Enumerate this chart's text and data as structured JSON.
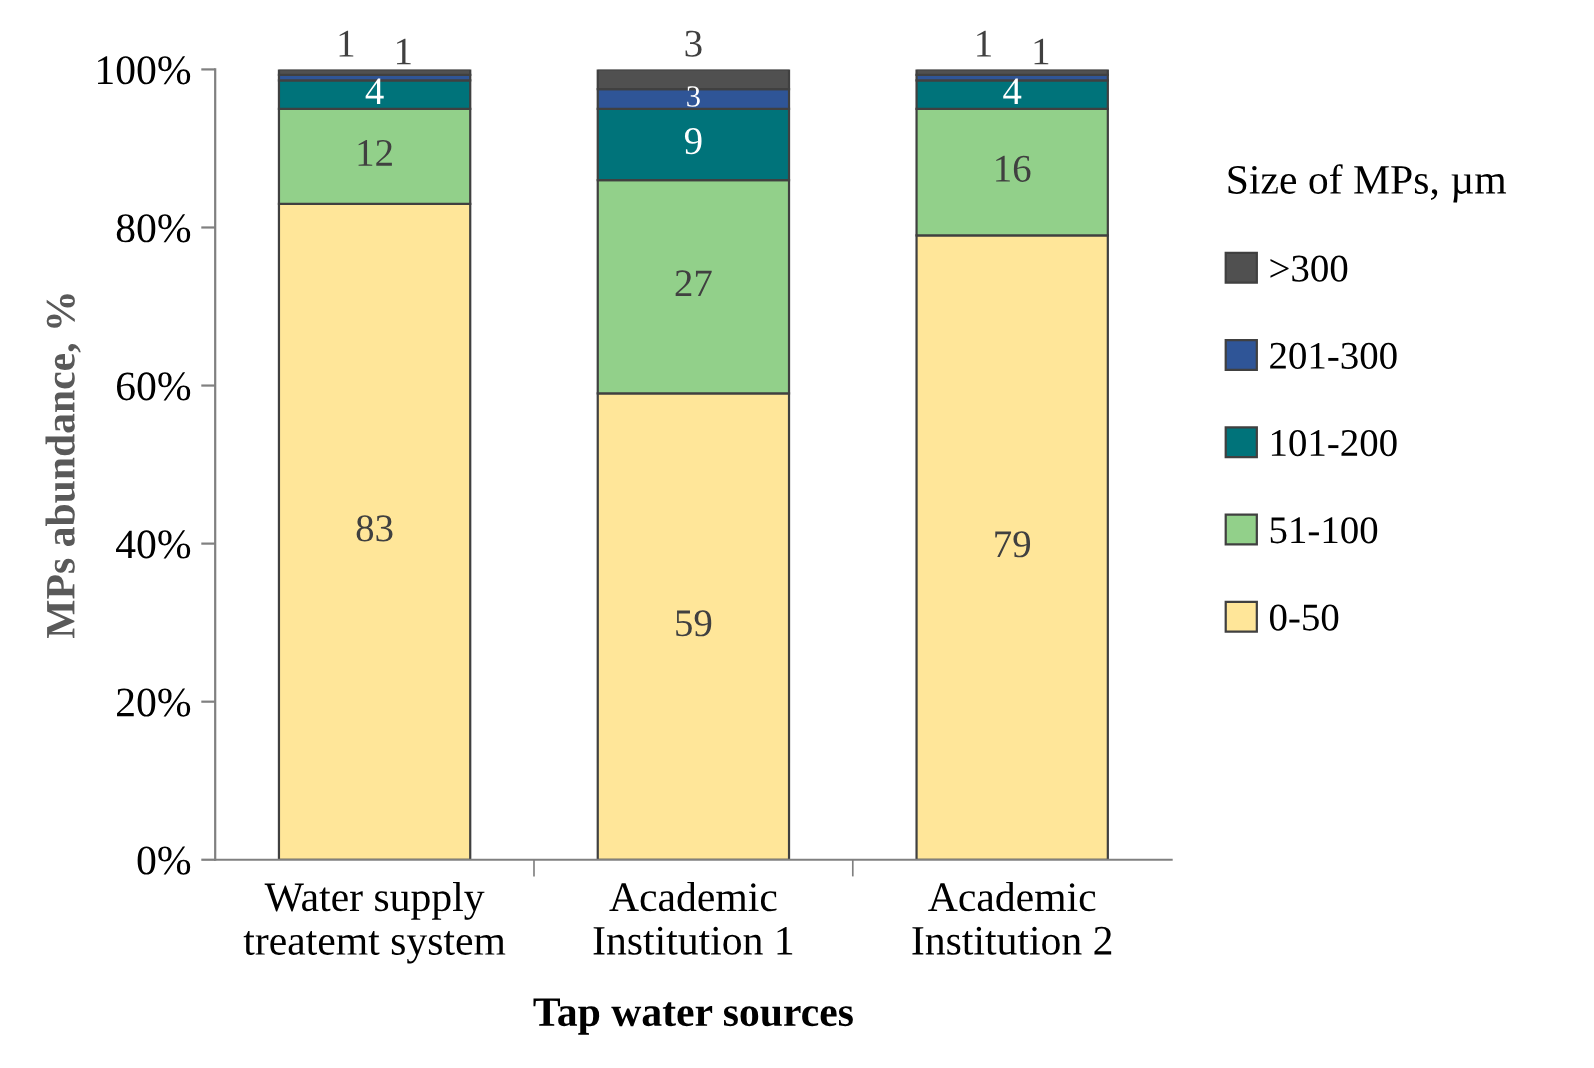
{
  "chart_data": {
    "type": "bar",
    "stacked": true,
    "xlabel": "Tap water sources",
    "ylabel": "MPs abundance, %",
    "legend_title": "Size of MPs, µm",
    "legend": "right",
    "grid": false,
    "categories": [
      "Water supply\ntreatemt system",
      "Academic\nInstitution 1",
      "Academic\nInstitution 2"
    ],
    "ylim": [
      0,
      100
    ],
    "yticks": [
      {
        "value": 0,
        "label": "0%"
      },
      {
        "value": 20,
        "label": "20%"
      },
      {
        "value": 40,
        "label": "40%"
      },
      {
        "value": 60,
        "label": "60%"
      },
      {
        "value": 80,
        "label": "80%"
      },
      {
        "value": 100,
        "label": "100%"
      }
    ],
    "series": [
      {
        "name": "0-50",
        "color": "#ffe699",
        "values": [
          83,
          59,
          79
        ],
        "value_labels": [
          "83",
          "59",
          "79"
        ]
      },
      {
        "name": "51-100",
        "color": "#92d08a",
        "values": [
          12,
          27,
          16
        ],
        "value_labels": [
          "12",
          "27",
          "16"
        ]
      },
      {
        "name": "101-200",
        "color": "#00737a",
        "values": [
          3.6,
          9,
          3.6
        ],
        "value_labels": [
          "4",
          "9",
          "4"
        ]
      },
      {
        "name": "201-300",
        "color": "#2f5597",
        "values": [
          0.7,
          2.5,
          0.7
        ],
        "value_labels": [
          "1",
          "3",
          "1"
        ]
      },
      {
        "name": ">300",
        "color": "#505050",
        "values": [
          0.7,
          2.5,
          0.7
        ],
        "value_labels": [
          "1",
          "3",
          "1"
        ]
      }
    ]
  }
}
